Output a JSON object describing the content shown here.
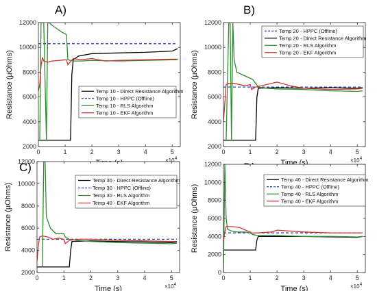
{
  "chart_data": [
    {
      "type": "line",
      "panel_label": "A)",
      "xlabel": "Time (s)",
      "ylabel": "Resistance (µOhms)",
      "x_exponent": "×10",
      "x_exponent_power": "4",
      "xlim": [
        0,
        5.3
      ],
      "ylim": [
        2000,
        12000
      ],
      "xticks": [
        "0",
        "1",
        "2",
        "3",
        "4",
        "5"
      ],
      "yticks": [
        "2000",
        "4000",
        "6000",
        "8000",
        "10000",
        "12000"
      ],
      "legend_position": "lower-right",
      "series": [
        {
          "name": "Temp 10 - Direct Resistance Algorithm",
          "color": "#000000",
          "dash": "",
          "x": [
            0,
            1.2,
            1.25,
            1.3,
            1.5,
            2,
            3,
            4,
            4.5,
            5,
            5.2
          ],
          "y": [
            2500,
            2500,
            7800,
            9000,
            9300,
            9500,
            9550,
            9600,
            9650,
            9700,
            9900
          ]
        },
        {
          "name": "Temp 10 - HPPC (Offline)",
          "color": "#1f3fbf",
          "dash": "4,3",
          "x": [
            0,
            5.2
          ],
          "y": [
            10300,
            10300
          ]
        },
        {
          "name": "Temp 10 - RLS Algorithm",
          "color": "#2e8b2e",
          "dash": "",
          "x": [
            0.05,
            0.1,
            0.2,
            0.3,
            0.35,
            0.4,
            0.5,
            0.7,
            0.9,
            1.0,
            1.05,
            1.1,
            1.3,
            1.6,
            2,
            3,
            4,
            5,
            5.2
          ],
          "y": [
            2500,
            12000,
            12000,
            2500,
            12000,
            12000,
            11800,
            11500,
            11200,
            11100,
            11000,
            9000,
            8900,
            8900,
            8950,
            8900,
            8950,
            9000,
            9000
          ]
        },
        {
          "name": "Temp 10 - EKF Algorithm",
          "color": "#d2322d",
          "dash": "",
          "x": [
            0,
            0.05,
            0.1,
            0.15,
            0.2,
            0.35,
            0.5,
            0.8,
            1.0,
            1.05,
            1.1,
            1.3,
            1.6,
            2,
            2.5,
            3,
            4,
            5,
            5.2
          ],
          "y": [
            6500,
            7000,
            8500,
            9200,
            8900,
            8800,
            8900,
            8950,
            9000,
            9000,
            8600,
            9100,
            9000,
            9100,
            8900,
            8950,
            9000,
            9050,
            9050
          ]
        }
      ]
    },
    {
      "type": "line",
      "panel_label": "B)",
      "xlabel": "Time (s)",
      "ylabel": "Resistance (µOhms)",
      "x_exponent": "×10",
      "x_exponent_power": "4",
      "xlim": [
        0,
        5.3
      ],
      "ylim": [
        2000,
        12000
      ],
      "xticks": [
        "0",
        "1",
        "2",
        "3",
        "4",
        "5"
      ],
      "yticks": [
        "2000",
        "4000",
        "6000",
        "8000",
        "10000",
        "12000"
      ],
      "legend_position": "top-right",
      "series": [
        {
          "name": "Temp 20 - HPPC (Offline)",
          "color": "#1f3fbf",
          "dash": "4,3",
          "x": [
            0,
            5.2
          ],
          "y": [
            6800,
            6800
          ]
        },
        {
          "name": "Temp 20 - Direct Resistance Algorithm",
          "color": "#000000",
          "dash": "",
          "x": [
            0,
            1.2,
            1.25,
            1.3,
            2,
            3,
            4,
            5,
            5.2
          ],
          "y": [
            2500,
            2500,
            6000,
            6700,
            6750,
            6700,
            6750,
            6700,
            6750
          ]
        },
        {
          "name": "Temp 20 - RLS Algorithm",
          "color": "#2e8b2e",
          "dash": "",
          "x": [
            0.1,
            0.2,
            0.25,
            0.3,
            0.35,
            0.4,
            0.5,
            0.7,
            0.9,
            1.0,
            1.1,
            1.3,
            1.6,
            2,
            3,
            4,
            5,
            5.2
          ],
          "y": [
            2500,
            12000,
            12000,
            2500,
            12000,
            9000,
            8000,
            7800,
            7600,
            7500,
            7400,
            6800,
            6700,
            6650,
            6600,
            6500,
            6450,
            6500
          ]
        },
        {
          "name": "Temp 20 - EKF Algorithm",
          "color": "#d2322d",
          "dash": "",
          "x": [
            0,
            0.05,
            0.1,
            0.2,
            0.4,
            0.6,
            0.8,
            1.0,
            1.05,
            1.2,
            1.6,
            2,
            2.5,
            3,
            4,
            5,
            5.2
          ],
          "y": [
            4000,
            5500,
            7000,
            7100,
            7100,
            7000,
            6900,
            7000,
            6600,
            6800,
            7000,
            7200,
            6900,
            6700,
            6600,
            6650,
            6700
          ]
        }
      ]
    },
    {
      "type": "line",
      "panel_label": "C)",
      "xlabel": "Time (s)",
      "ylabel": "Resistance (µOhms)",
      "x_exponent": "×10",
      "x_exponent_power": "4",
      "xlim": [
        0,
        5.3
      ],
      "ylim": [
        2000,
        12000
      ],
      "xticks": [
        "0",
        "1",
        "2",
        "3",
        "4",
        "5"
      ],
      "yticks": [
        "2000",
        "4000",
        "6000",
        "8000",
        "10000",
        "12000"
      ],
      "legend_position": "top-right",
      "series": [
        {
          "name": "Temp 30 - Direct Resistance Algorithm",
          "color": "#000000",
          "dash": "",
          "x": [
            0,
            1.2,
            1.25,
            1.3,
            2,
            3,
            4,
            5,
            5.2
          ],
          "y": [
            2500,
            2500,
            4000,
            4800,
            4850,
            4800,
            4750,
            4700,
            4750
          ]
        },
        {
          "name": "Temp 30 - HPPC (Offline)",
          "color": "#1f3fbf",
          "dash": "4,3",
          "x": [
            0,
            5.2
          ],
          "y": [
            5000,
            5000
          ]
        },
        {
          "name": "Temp 30 - RLS Algorithm",
          "color": "#2e8b2e",
          "dash": "",
          "x": [
            0.2,
            0.25,
            0.3,
            0.35,
            0.5,
            0.7,
            1.0,
            1.05,
            1.2,
            1.5,
            2,
            3,
            4,
            5,
            5.2
          ],
          "y": [
            2500,
            12000,
            12000,
            7000,
            6000,
            5500,
            5500,
            5200,
            5000,
            4900,
            4800,
            4700,
            4650,
            4600,
            4650
          ]
        },
        {
          "name": "Temp 40 - EKF Algorithm",
          "color": "#d2322d",
          "dash": "",
          "x": [
            0,
            0.05,
            0.1,
            0.2,
            0.4,
            0.6,
            0.8,
            1.0,
            1.05,
            1.2,
            1.6,
            2,
            3,
            4,
            5,
            5.2
          ],
          "y": [
            3000,
            4500,
            5200,
            5300,
            5200,
            5000,
            5100,
            5000,
            4600,
            4900,
            5000,
            5000,
            4900,
            4850,
            4800,
            4800
          ]
        }
      ]
    },
    {
      "type": "line",
      "panel_label": "D)",
      "xlabel": "Time (s)",
      "ylabel": "Resistance (µOhms)",
      "x_exponent": "×10",
      "x_exponent_power": "4",
      "xlim": [
        0,
        5.3
      ],
      "ylim": [
        0,
        12000
      ],
      "xticks": [
        "0",
        "1",
        "2",
        "3",
        "4",
        "5"
      ],
      "yticks": [
        "0",
        "2000",
        "4000",
        "6000",
        "8000",
        "10000",
        "12000"
      ],
      "legend_position": "top-right",
      "series": [
        {
          "name": "Temp 40 - Direct Resistance Algorithm",
          "color": "#000000",
          "dash": "",
          "x": [
            0,
            1.2,
            1.25,
            1.3,
            2,
            3,
            4,
            5,
            5.2
          ],
          "y": [
            2500,
            2500,
            3600,
            4000,
            4000,
            4000,
            3950,
            3900,
            4000
          ]
        },
        {
          "name": "Temp 40 - HPPC (Offline)",
          "color": "#1f3fbf",
          "dash": "4,3",
          "x": [
            0,
            5.2
          ],
          "y": [
            4400,
            4400
          ]
        },
        {
          "name": "Temp 40 - RLS Algorithm",
          "color": "#2e8b2e",
          "dash": "",
          "x": [
            0,
            0.05,
            0.1,
            0.15,
            0.3,
            0.5,
            0.8,
            1.0,
            1.1,
            1.3,
            2,
            3,
            4,
            5,
            5.2
          ],
          "y": [
            0,
            12000,
            6000,
            4800,
            4600,
            4500,
            4500,
            4400,
            4200,
            4100,
            4100,
            4000,
            4000,
            3950,
            4000
          ]
        },
        {
          "name": "Temp 40 - EKF Algorithm",
          "color": "#d2322d",
          "dash": "",
          "x": [
            0,
            0.05,
            0.1,
            0.3,
            0.6,
            0.9,
            1.0,
            1.05,
            1.3,
            1.8,
            2,
            3,
            4,
            5,
            5.2
          ],
          "y": [
            3500,
            4500,
            5100,
            5100,
            5000,
            4600,
            4500,
            4400,
            4400,
            4500,
            4700,
            4500,
            4400,
            4400,
            4400
          ]
        }
      ]
    }
  ]
}
